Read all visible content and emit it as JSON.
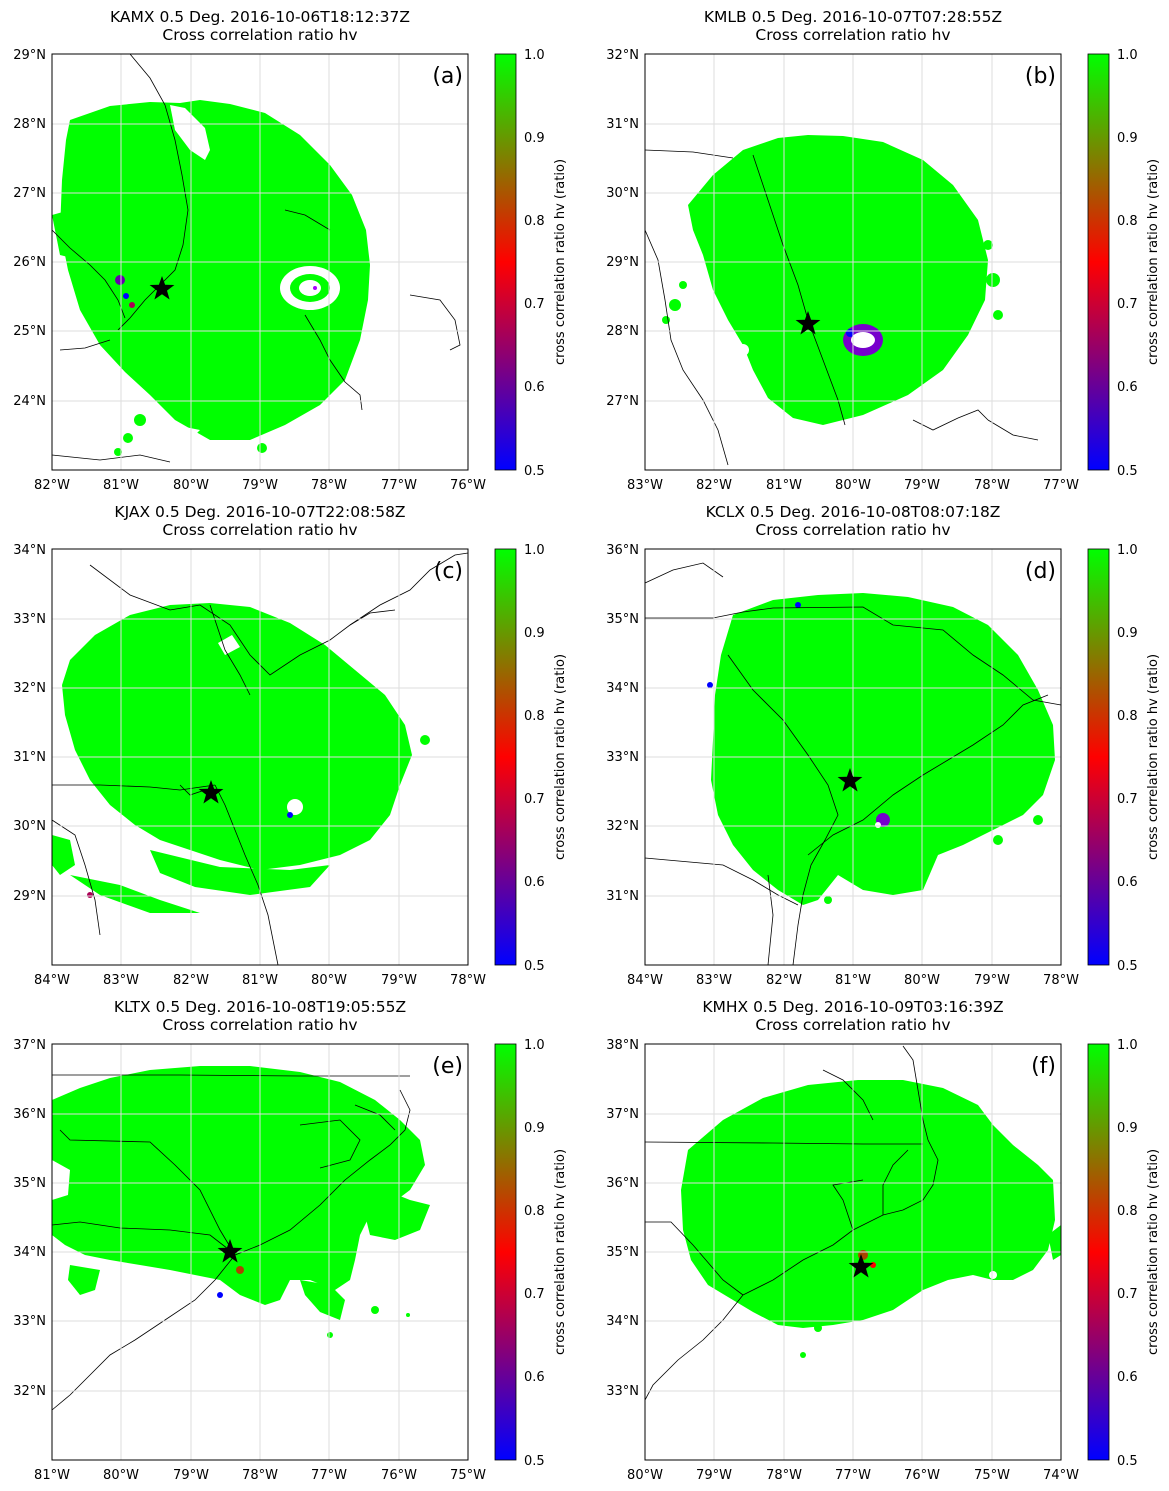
{
  "colors": {
    "high": "#00ff00",
    "mid": "#ff0000",
    "low": "#0000ff",
    "coast": "#000000",
    "grid": "#dddddd"
  },
  "panels": [
    {
      "tag": "(a)",
      "title1": "KAMX 0.5 Deg. 2016-10-06T18:12:37Z",
      "title2": "Cross correlation ratio hv",
      "xticks": [
        "82°W",
        "81°W",
        "80°W",
        "79°W",
        "78°W",
        "77°W",
        "76°W"
      ],
      "yticks": [
        "29°N",
        "28°N",
        "27°N",
        "26°N",
        "25°N",
        "24°N"
      ]
    },
    {
      "tag": "(b)",
      "title1": "KMLB 0.5 Deg. 2016-10-07T07:28:55Z",
      "title2": "Cross correlation ratio hv",
      "xticks": [
        "83°W",
        "82°W",
        "81°W",
        "80°W",
        "79°W",
        "78°W",
        "77°W"
      ],
      "yticks": [
        "32°N",
        "31°N",
        "30°N",
        "29°N",
        "28°N",
        "27°N"
      ]
    },
    {
      "tag": "(c)",
      "title1": "KJAX 0.5 Deg. 2016-10-07T22:08:58Z",
      "title2": "Cross correlation ratio hv",
      "xticks": [
        "84°W",
        "83°W",
        "82°W",
        "81°W",
        "80°W",
        "79°W",
        "78°W"
      ],
      "yticks": [
        "34°N",
        "33°N",
        "32°N",
        "31°N",
        "30°N",
        "29°N"
      ]
    },
    {
      "tag": "(d)",
      "title1": "KCLX 0.5 Deg. 2016-10-08T08:07:18Z",
      "title2": "Cross correlation ratio hv",
      "xticks": [
        "84°W",
        "83°W",
        "82°W",
        "81°W",
        "80°W",
        "79°W",
        "78°W"
      ],
      "yticks": [
        "36°N",
        "35°N",
        "34°N",
        "33°N",
        "32°N",
        "31°N"
      ]
    },
    {
      "tag": "(e)",
      "title1": "KLTX 0.5 Deg. 2016-10-08T19:05:55Z",
      "title2": "Cross correlation ratio hv",
      "xticks": [
        "81°W",
        "80°W",
        "79°W",
        "78°W",
        "77°W",
        "76°W",
        "75°W"
      ],
      "yticks": [
        "37°N",
        "36°N",
        "35°N",
        "34°N",
        "33°N",
        "32°N"
      ]
    },
    {
      "tag": "(f)",
      "title1": "KMHX 0.5 Deg. 2016-10-09T03:16:39Z",
      "title2": "Cross correlation ratio hv",
      "xticks": [
        "80°W",
        "79°W",
        "78°W",
        "77°W",
        "76°W",
        "75°W",
        "74°W"
      ],
      "yticks": [
        "38°N",
        "37°N",
        "36°N",
        "35°N",
        "34°N",
        "33°N"
      ]
    }
  ],
  "colorbar": {
    "label": "cross correlation ratio hv (ratio)",
    "ticks": [
      "1.0",
      "0.9",
      "0.8",
      "0.7",
      "0.6",
      "0.5"
    ]
  },
  "chart_data": [
    {
      "type": "heatmap",
      "radar": "KAMX",
      "elevation_deg": 0.5,
      "time": "2016-10-06T18:12:37Z",
      "variable": "Cross correlation ratio hv",
      "units": "ratio",
      "lon_range": [
        -82,
        -76
      ],
      "lat_range": [
        23,
        29
      ],
      "radar_site": [
        -80.41,
        25.61
      ],
      "color_range": [
        0.5,
        1.0
      ],
      "colormap": [
        "blue",
        "red",
        "green"
      ]
    },
    {
      "type": "heatmap",
      "radar": "KMLB",
      "elevation_deg": 0.5,
      "time": "2016-10-07T07:28:55Z",
      "variable": "Cross correlation ratio hv",
      "units": "ratio",
      "lon_range": [
        -83,
        -77
      ],
      "lat_range": [
        26,
        32
      ],
      "radar_site": [
        -80.65,
        28.11
      ],
      "color_range": [
        0.5,
        1.0
      ],
      "colormap": [
        "blue",
        "red",
        "green"
      ]
    },
    {
      "type": "heatmap",
      "radar": "KJAX",
      "elevation_deg": 0.5,
      "time": "2016-10-07T22:08:58Z",
      "variable": "Cross correlation ratio hv",
      "units": "ratio",
      "lon_range": [
        -84,
        -78
      ],
      "lat_range": [
        28,
        34
      ],
      "radar_site": [
        -81.7,
        30.48
      ],
      "color_range": [
        0.5,
        1.0
      ],
      "colormap": [
        "blue",
        "red",
        "green"
      ]
    },
    {
      "type": "heatmap",
      "radar": "KCLX",
      "elevation_deg": 0.5,
      "time": "2016-10-08T08:07:18Z",
      "variable": "Cross correlation ratio hv",
      "units": "ratio",
      "lon_range": [
        -84,
        -78
      ],
      "lat_range": [
        30,
        36
      ],
      "radar_site": [
        -81.04,
        32.66
      ],
      "color_range": [
        0.5,
        1.0
      ],
      "colormap": [
        "blue",
        "red",
        "green"
      ]
    },
    {
      "type": "heatmap",
      "radar": "KLTX",
      "elevation_deg": 0.5,
      "time": "2016-10-08T19:05:55Z",
      "variable": "Cross correlation ratio hv",
      "units": "ratio",
      "lon_range": [
        -81,
        -75
      ],
      "lat_range": [
        31,
        37
      ],
      "radar_site": [
        -78.43,
        33.99
      ],
      "color_range": [
        0.5,
        1.0
      ],
      "colormap": [
        "blue",
        "red",
        "green"
      ]
    },
    {
      "type": "heatmap",
      "radar": "KMHX",
      "elevation_deg": 0.5,
      "time": "2016-10-09T03:16:39Z",
      "variable": "Cross correlation ratio hv",
      "units": "ratio",
      "lon_range": [
        -80,
        -74
      ],
      "lat_range": [
        32,
        38
      ],
      "radar_site": [
        -76.88,
        34.78
      ],
      "color_range": [
        0.5,
        1.0
      ],
      "colormap": [
        "blue",
        "red",
        "green"
      ]
    }
  ]
}
